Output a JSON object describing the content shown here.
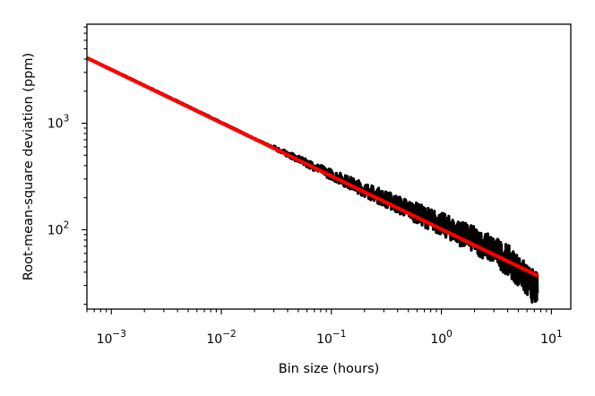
{
  "chart_data": {
    "type": "line",
    "title": "",
    "xlabel": "Bin size (hours)",
    "ylabel": "Root-mean-square deviation (ppm)",
    "xscale": "log",
    "yscale": "log",
    "xlim": [
      0.0006,
      15
    ],
    "ylim": [
      18,
      8500
    ],
    "grid": false,
    "legend": "none",
    "x_ticks": [
      {
        "value": 0.001,
        "base": "10",
        "exp": "−3"
      },
      {
        "value": 0.01,
        "base": "10",
        "exp": "−2"
      },
      {
        "value": 0.1,
        "base": "10",
        "exp": "−1"
      },
      {
        "value": 1,
        "base": "10",
        "exp": "0"
      },
      {
        "value": 10,
        "base": "10",
        "exp": "1"
      }
    ],
    "y_ticks": [
      {
        "value": 100,
        "base": "10",
        "exp": "2"
      },
      {
        "value": 1000,
        "base": "10",
        "exp": "3"
      }
    ],
    "series": [
      {
        "color": "#000000",
        "style": "measured",
        "x": [
          0.0006,
          0.001,
          0.002,
          0.005,
          0.01,
          0.02,
          0.05,
          0.1,
          0.2,
          0.3,
          0.5,
          0.7,
          1.0,
          1.5,
          2.0,
          3.0,
          4.0,
          5.0,
          6.0,
          7.5
        ],
        "y": [
          4100,
          3200,
          2270,
          1440,
          1020,
          720,
          460,
          330,
          238,
          198,
          156,
          133,
          113,
          92,
          80,
          64,
          52,
          42,
          33,
          27
        ]
      },
      {
        "color": "#ff0000",
        "style": "model",
        "x": [
          0.0006,
          7.5
        ],
        "y": [
          4100,
          37
        ]
      }
    ]
  }
}
